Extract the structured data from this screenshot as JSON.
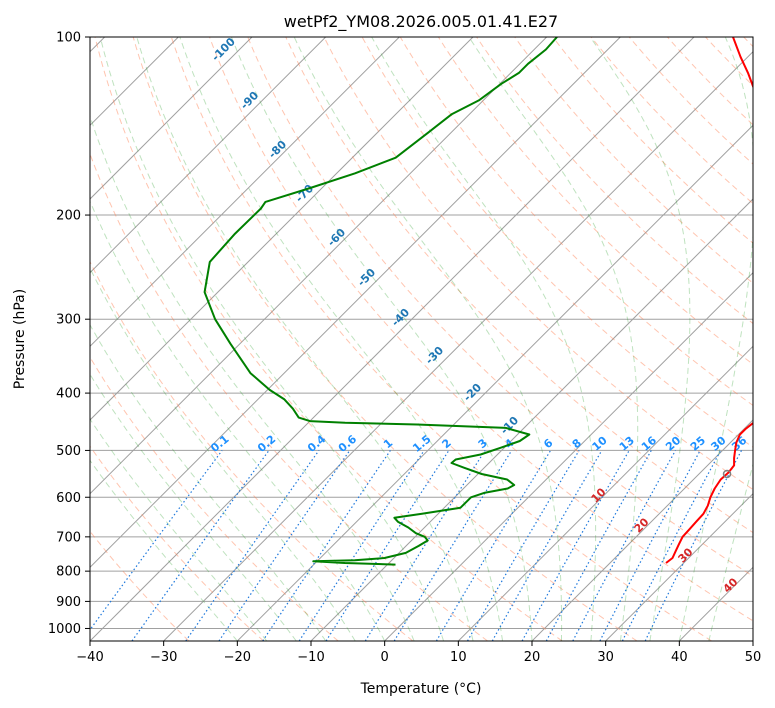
{
  "chart_data": {
    "type": "skew-t",
    "title": "wetPf2_YM08.2026.005.01.41.E27",
    "xlabel": "Temperature (°C)",
    "ylabel": "Pressure (hPa)",
    "xlim": [
      -40,
      50
    ],
    "ylim_hpa": [
      1050,
      100
    ],
    "x_scale": "linear",
    "y_scale": "log",
    "grid": true,
    "x_ticks": [
      -40,
      -30,
      -20,
      -10,
      0,
      10,
      20,
      30,
      40,
      50
    ],
    "y_ticks": [
      100,
      200,
      300,
      400,
      500,
      600,
      700,
      800,
      900,
      1000
    ],
    "temperature_profile": {
      "color": "#ff0000",
      "points": [
        [
          775,
          27.6
        ],
        [
          760,
          27.8
        ],
        [
          740,
          27.3
        ],
        [
          720,
          26.8
        ],
        [
          700,
          26.3
        ],
        [
          680,
          26.2
        ],
        [
          660,
          26.1
        ],
        [
          640,
          26.0
        ],
        [
          620,
          25.5
        ],
        [
          600,
          24.7
        ],
        [
          580,
          24.1
        ],
        [
          560,
          23.7
        ],
        [
          545,
          23.8
        ],
        [
          530,
          23.6
        ],
        [
          515,
          22.6
        ],
        [
          500,
          21.7
        ],
        [
          485,
          20.8
        ],
        [
          470,
          20.2
        ],
        [
          460,
          20.2
        ],
        [
          450,
          20.4
        ],
        [
          440,
          21.4
        ],
        [
          430,
          22.3
        ],
        [
          420,
          22.9
        ],
        [
          410,
          23.0
        ],
        [
          400,
          22.4
        ],
        [
          380,
          20.3
        ],
        [
          360,
          18.2
        ],
        [
          340,
          16.3
        ],
        [
          320,
          14.9
        ],
        [
          300,
          13.2
        ],
        [
          280,
          10.8
        ],
        [
          260,
          8.0
        ],
        [
          240,
          4.8
        ],
        [
          220,
          1.2
        ],
        [
          200,
          -2.8
        ],
        [
          180,
          -7.5
        ],
        [
          160,
          -12.7
        ],
        [
          140,
          -18.7
        ],
        [
          125,
          -23.8
        ],
        [
          115,
          -27.8
        ],
        [
          108,
          -31.0
        ],
        [
          100,
          -34.7
        ]
      ]
    },
    "dewpoint_profile": {
      "color": "#008000",
      "points": [
        [
          780,
          -8.9
        ],
        [
          775,
          -16.0
        ],
        [
          770,
          -20.5
        ],
        [
          767,
          -15.0
        ],
        [
          760,
          -11.3
        ],
        [
          745,
          -9.1
        ],
        [
          725,
          -8.3
        ],
        [
          710,
          -7.8
        ],
        [
          700,
          -8.7
        ],
        [
          690,
          -10.4
        ],
        [
          675,
          -12.2
        ],
        [
          660,
          -14.4
        ],
        [
          650,
          -15.4
        ],
        [
          640,
          -12.2
        ],
        [
          625,
          -7.8
        ],
        [
          600,
          -7.8
        ],
        [
          590,
          -6.6
        ],
        [
          580,
          -4.0
        ],
        [
          572,
          -3.6
        ],
        [
          560,
          -5.3
        ],
        [
          548,
          -9.5
        ],
        [
          535,
          -12.7
        ],
        [
          525,
          -15.1
        ],
        [
          518,
          -15.0
        ],
        [
          508,
          -12.3
        ],
        [
          495,
          -10.5
        ],
        [
          482,
          -8.8
        ],
        [
          470,
          -8.4
        ],
        [
          458,
          -12.5
        ],
        [
          452,
          -25.0
        ],
        [
          449,
          -35.0
        ],
        [
          446,
          -40.0
        ],
        [
          440,
          -42.0
        ],
        [
          425,
          -44.0
        ],
        [
          410,
          -46.4
        ],
        [
          395,
          -49.7
        ],
        [
          370,
          -54.6
        ],
        [
          330,
          -61.3
        ],
        [
          300,
          -66.7
        ],
        [
          270,
          -71.8
        ],
        [
          240,
          -75.2
        ],
        [
          215,
          -75.6
        ],
        [
          195,
          -75.5
        ],
        [
          190,
          -75.8
        ],
        [
          180,
          -71.6
        ],
        [
          170,
          -67.5
        ],
        [
          160,
          -64.1
        ],
        [
          145,
          -63.1
        ],
        [
          135,
          -62.4
        ],
        [
          128,
          -60.6
        ],
        [
          120,
          -59.8
        ],
        [
          115,
          -58.9
        ],
        [
          111,
          -58.9
        ],
        [
          105,
          -58.4
        ],
        [
          100,
          -58.6
        ]
      ]
    },
    "parcel_marker": {
      "pressure": 548,
      "temperature": 23.8,
      "color": "#808080"
    },
    "mixing_ratio_labels": [
      "0.1",
      "0.2",
      "0.4",
      "0.6",
      "1",
      "1.5",
      "2",
      "3",
      "4",
      "6",
      "8",
      "10",
      "13",
      "16",
      "20",
      "25",
      "30",
      "36"
    ],
    "dry_adiabat_labels": [
      "-100",
      "-90",
      "-80",
      "-70",
      "-60",
      "-50",
      "-40",
      "-30",
      "-20",
      "-10"
    ],
    "moist_adiabat_labels": [
      "10",
      "20",
      "30",
      "40"
    ],
    "colors": {
      "temperature": "#ff0000",
      "dewpoint": "#008000",
      "isotherm": "#a0a0a0",
      "dry_adiabat": "#ff7f50",
      "moist_adiabat": "#2ca02c",
      "mixing_ratio": "#1e78dc",
      "dry_label": "#1f77b4",
      "mixing_label": "#1e90ff",
      "moist_label": "#d62728"
    }
  }
}
